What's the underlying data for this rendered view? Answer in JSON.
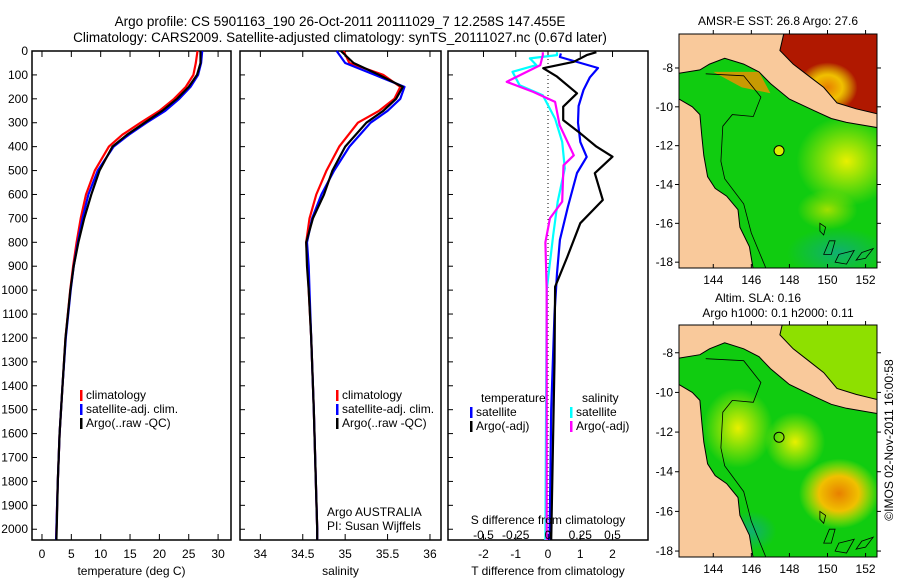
{
  "title": {
    "line1": "Argo profile: CS 5901163_190 26-Oct-2011 20111029_7 12.258S 147.455E",
    "line2": "Climatology: CARS2009. Satellite-adjusted climatology: synTS_20111027.nc (0.67d later)"
  },
  "colors": {
    "climatology": "#ff0000",
    "satellite": "#0000ff",
    "argo": "#000000",
    "s_satellite": "#00ffff",
    "s_argo": "#ff00ff",
    "land": "#f9c99b",
    "ocean": "#10cc10"
  },
  "chart_data": [
    {
      "type": "line",
      "id": "temperature",
      "xlabel": "temperature (deg C)",
      "ylabel": "",
      "xlim": [
        -1.7,
        32.2
      ],
      "ylim": [
        2045,
        0
      ],
      "xticks": [
        0,
        5,
        10,
        15,
        20,
        25,
        30
      ],
      "yticks": [
        0,
        100,
        200,
        300,
        400,
        500,
        600,
        700,
        800,
        900,
        1000,
        1100,
        1200,
        1300,
        1400,
        1500,
        1600,
        1700,
        1800,
        1900,
        2000
      ],
      "depth": [
        0,
        50,
        100,
        150,
        200,
        250,
        300,
        350,
        400,
        500,
        600,
        700,
        800,
        900,
        1000,
        1200,
        1400,
        1600,
        1800,
        2000,
        2045
      ],
      "series": [
        {
          "name": "climatology",
          "color": "#ff0000",
          "values": [
            26.5,
            26.2,
            25.8,
            24.5,
            22.5,
            20,
            16.8,
            13.7,
            11.4,
            9.0,
            7.5,
            6.6,
            5.9,
            5.3,
            4.8,
            4.0,
            3.5,
            3.0,
            2.7,
            2.45,
            2.4
          ]
        },
        {
          "name": "satellite-adj. clim.",
          "color": "#0000ff",
          "values": [
            27.3,
            27.1,
            26.6,
            25.3,
            23.4,
            21,
            17.8,
            14.8,
            12.2,
            9.5,
            7.9,
            6.9,
            6.1,
            5.4,
            4.9,
            4.05,
            3.5,
            3.0,
            2.7,
            2.45,
            2.4
          ]
        },
        {
          "name": "Argo(..raw -QC)",
          "color": "#000000",
          "values": [
            27.0,
            27.0,
            26.4,
            25.0,
            23.0,
            20.5,
            17.5,
            14.5,
            12.0,
            9.8,
            8.4,
            7.2,
            6.2,
            5.4,
            4.85,
            4.0,
            3.5,
            3.0,
            2.7,
            2.5,
            2.45
          ]
        }
      ],
      "legend": [
        "climatology",
        "satellite-adj. clim.",
        "Argo(..raw -QC)"
      ]
    },
    {
      "type": "line",
      "id": "salinity",
      "xlabel": "salinity",
      "xlim": [
        33.76,
        36.13
      ],
      "ylim": [
        2045,
        0
      ],
      "xticks": [
        34,
        34.5,
        35,
        35.5,
        36
      ],
      "depth": [
        0,
        50,
        100,
        150,
        200,
        250,
        300,
        400,
        500,
        600,
        700,
        800,
        900,
        1000,
        1200,
        1500,
        2000,
        2045
      ],
      "series": [
        {
          "name": "climatology",
          "color": "#ff0000",
          "values": [
            34.98,
            35.05,
            35.45,
            35.65,
            35.58,
            35.4,
            35.15,
            34.93,
            34.78,
            34.66,
            34.58,
            34.54,
            34.56,
            34.57,
            34.6,
            34.63,
            34.67,
            34.67
          ]
        },
        {
          "name": "satellite-adj. clim.",
          "color": "#0000ff",
          "values": [
            34.9,
            35.0,
            35.35,
            35.7,
            35.65,
            35.5,
            35.3,
            35.05,
            34.87,
            34.72,
            34.61,
            34.55,
            34.57,
            34.58,
            34.6,
            34.63,
            34.67,
            34.67
          ]
        },
        {
          "name": "Argo(..raw -QC)",
          "color": "#000000",
          "values": [
            34.95,
            35.1,
            35.4,
            35.68,
            35.6,
            35.45,
            35.25,
            35.0,
            34.85,
            34.75,
            34.62,
            34.54,
            34.55,
            34.57,
            34.6,
            34.63,
            34.67,
            34.67
          ]
        }
      ],
      "legend": [
        "climatology",
        "satellite-adj. clim.",
        "Argo(..raw -QC)"
      ],
      "annotation": [
        "Argo AUSTRALIA",
        "PI: Susan Wijffels"
      ]
    },
    {
      "type": "line",
      "id": "difference",
      "xlabel": "T difference from climatology",
      "x2label": "S difference from climatology",
      "xlim": [
        -3.1,
        3.1
      ],
      "x2lim": [
        -0.775,
        0.775
      ],
      "ylim": [
        2045,
        0
      ],
      "xticks": [
        -2,
        -1,
        0,
        1,
        2
      ],
      "x2ticks": [
        -0.5,
        -0.25,
        0,
        0.25,
        0.5
      ],
      "x2ticklabels": [
        "-0.5",
        "-0.25",
        "0",
        "0.25",
        "0.5"
      ],
      "zero_line": "dotted",
      "series": [
        {
          "name": "temperature satellite",
          "axis": "T",
          "color": "#0000ff",
          "depth": [
            10,
            25,
            71,
            110,
            163,
            230,
            300,
            380,
            443,
            510,
            650,
            790,
            930,
            1100,
            1500,
            2045
          ],
          "values": [
            0.4,
            0.37,
            1.55,
            1.3,
            1.1,
            0.95,
            0.93,
            1.0,
            1.2,
            0.9,
            0.62,
            0.37,
            0.28,
            0.2,
            0.1,
            0.05
          ]
        },
        {
          "name": "temperature Argo(-adj)",
          "axis": "T",
          "color": "#000000",
          "depth": [
            5,
            17,
            45,
            72,
            107,
            177,
            233,
            289,
            344,
            400,
            442,
            511,
            623,
            720,
            860,
            986,
            1300,
            2045
          ],
          "values": [
            1.5,
            1.2,
            0.8,
            -0.15,
            0.28,
            0.9,
            0.47,
            0.47,
            1.0,
            1.5,
            2.0,
            1.45,
            1.7,
            1.0,
            0.6,
            0.22,
            0.2,
            0.1
          ]
        },
        {
          "name": "salinity satellite",
          "axis": "S",
          "color": "#00ffff",
          "depth": [
            5,
            17,
            31,
            59,
            87,
            143,
            185,
            283,
            380,
            491,
            630,
            770,
            1000,
            2045
          ],
          "values": [
            0.07,
            0.07,
            -0.14,
            -0.09,
            -0.275,
            -0.22,
            -0.04,
            0.055,
            0.11,
            0.13,
            0.075,
            0.04,
            -0.01,
            -0.02
          ]
        },
        {
          "name": "salinity Argo(-adj)",
          "axis": "S",
          "color": "#ff00ff",
          "depth": [
            5,
            17,
            59,
            129,
            171,
            213,
            310,
            436,
            478,
            630,
            700,
            800,
            1000,
            2045
          ],
          "values": [
            -0.04,
            -0.04,
            -0.06,
            -0.32,
            -0.115,
            0.055,
            0.09,
            0.2,
            0.12,
            0.11,
            0.015,
            -0.02,
            -0.01,
            -0.01
          ]
        }
      ],
      "legend": {
        "temperature_header": "temperature",
        "salinity_header": "salinity",
        "items": [
          "satellite",
          "Argo(-adj)",
          "satellite",
          "Argo(-adj)"
        ]
      }
    }
  ],
  "maps": [
    {
      "id": "sst-map",
      "title": "AMSR-E SST: 26.8 Argo: 27.6",
      "lon_range": [
        142.2,
        152.6
      ],
      "lat_range": [
        -18.3,
        -6.25
      ],
      "xticks": [
        144,
        146,
        148,
        150,
        152
      ],
      "yticks": [
        -8,
        -10,
        -12,
        -14,
        -16,
        -18
      ],
      "argo_position": {
        "lon": 147.455,
        "lat": -12.258
      }
    },
    {
      "id": "sla-map",
      "title": "Altim. SLA: 0.16",
      "subtitle": "Argo h1000: 0.1 h2000: 0.11",
      "lon_range": [
        142.2,
        152.6
      ],
      "lat_range": [
        -18.3,
        -6.6
      ],
      "xticks": [
        144,
        146,
        148,
        150,
        152
      ],
      "yticks": [
        -8,
        -10,
        -12,
        -14,
        -16,
        -18
      ],
      "argo_position": {
        "lon": 147.455,
        "lat": -12.258
      }
    }
  ],
  "credit": "©IMOS 02-Nov-2011 16:00:58"
}
